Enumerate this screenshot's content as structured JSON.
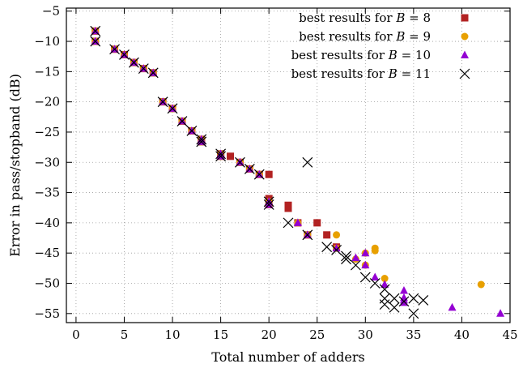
{
  "chart_data": {
    "type": "scatter",
    "xlabel": "Total number of adders",
    "ylabel": "Error in pass/stopband (dB)",
    "xlim": [
      -1,
      45
    ],
    "ylim": [
      -56.5,
      -4.5
    ],
    "xticks": [
      0,
      5,
      10,
      15,
      20,
      25,
      30,
      35,
      40,
      45
    ],
    "yticks": [
      -5,
      -10,
      -15,
      -20,
      -25,
      -30,
      -35,
      -40,
      -45,
      -50,
      -55
    ],
    "grid": true,
    "legend_position": "top-right",
    "series": [
      {
        "name_prefix": "best results for ",
        "name_var": "B",
        "name_value": " = 8",
        "marker": "square",
        "color": "#b22222",
        "points": [
          [
            2,
            -8.3
          ],
          [
            2,
            -10.0
          ],
          [
            4,
            -11.3
          ],
          [
            5,
            -12.2
          ],
          [
            6,
            -13.5
          ],
          [
            7,
            -14.5
          ],
          [
            8,
            -15.2
          ],
          [
            9,
            -20.0
          ],
          [
            10,
            -21.1
          ],
          [
            11,
            -23.2
          ],
          [
            12,
            -24.8
          ],
          [
            13,
            -26.2
          ],
          [
            13,
            -26.6
          ],
          [
            15,
            -28.6
          ],
          [
            15,
            -29.0
          ],
          [
            16,
            -29.0
          ],
          [
            17,
            -30.0
          ],
          [
            18,
            -31.1
          ],
          [
            19,
            -32.0
          ],
          [
            20,
            -32.0
          ],
          [
            20,
            -36.0
          ],
          [
            20,
            -37.0
          ],
          [
            22,
            -37.1
          ],
          [
            22,
            -37.6
          ],
          [
            23,
            -40.0
          ],
          [
            24,
            -42.0
          ],
          [
            25,
            -40.0
          ],
          [
            26,
            -42.0
          ],
          [
            27,
            -44.0
          ]
        ]
      },
      {
        "name_prefix": "best results for ",
        "name_var": "B",
        "name_value": " = 9",
        "marker": "circle",
        "color": "#e8a000",
        "points": [
          [
            2,
            -8.3
          ],
          [
            2,
            -10.0
          ],
          [
            4,
            -11.3
          ],
          [
            5,
            -12.2
          ],
          [
            6,
            -13.5
          ],
          [
            7,
            -14.5
          ],
          [
            8,
            -15.2
          ],
          [
            9,
            -20.0
          ],
          [
            10,
            -21.1
          ],
          [
            11,
            -23.2
          ],
          [
            12,
            -24.8
          ],
          [
            13,
            -26.2
          ],
          [
            13,
            -26.6
          ],
          [
            15,
            -28.6
          ],
          [
            15,
            -29.0
          ],
          [
            17,
            -30.0
          ],
          [
            18,
            -31.1
          ],
          [
            19,
            -32.0
          ],
          [
            20,
            -36.5
          ],
          [
            20,
            -37.0
          ],
          [
            23,
            -40.0
          ],
          [
            24,
            -42.0
          ],
          [
            27,
            -42.0
          ],
          [
            27,
            -44.2
          ],
          [
            29,
            -46.0
          ],
          [
            30,
            -45.0
          ],
          [
            30,
            -47.0
          ],
          [
            31,
            -44.2
          ],
          [
            31,
            -44.6
          ],
          [
            32,
            -49.2
          ],
          [
            42,
            -50.2
          ]
        ]
      },
      {
        "name_prefix": "best results for ",
        "name_var": "B",
        "name_value": " = 10",
        "marker": "triangle",
        "color": "#9400d3",
        "points": [
          [
            2,
            -8.3
          ],
          [
            2,
            -10.0
          ],
          [
            4,
            -11.3
          ],
          [
            5,
            -12.2
          ],
          [
            6,
            -13.5
          ],
          [
            7,
            -14.5
          ],
          [
            8,
            -15.2
          ],
          [
            9,
            -20.0
          ],
          [
            10,
            -21.1
          ],
          [
            11,
            -23.2
          ],
          [
            12,
            -24.8
          ],
          [
            13,
            -26.2
          ],
          [
            13,
            -26.6
          ],
          [
            15,
            -28.6
          ],
          [
            15,
            -29.0
          ],
          [
            17,
            -30.0
          ],
          [
            18,
            -31.1
          ],
          [
            19,
            -32.0
          ],
          [
            20,
            -36.5
          ],
          [
            20,
            -37.0
          ],
          [
            23,
            -40.0
          ],
          [
            24,
            -42.0
          ],
          [
            27,
            -44.2
          ],
          [
            29,
            -45.8
          ],
          [
            30,
            -45.0
          ],
          [
            30,
            -47.0
          ],
          [
            31,
            -49.0
          ],
          [
            32,
            -50.2
          ],
          [
            34,
            -51.2
          ],
          [
            34,
            -52.4
          ],
          [
            34,
            -52.8
          ],
          [
            34,
            -53.2
          ],
          [
            39,
            -54.0
          ],
          [
            44,
            -55.0
          ]
        ]
      },
      {
        "name_prefix": "best results for ",
        "name_var": "B",
        "name_value": " = 11",
        "marker": "cross",
        "color": "#000000",
        "points": [
          [
            2,
            -8.3
          ],
          [
            2,
            -10.0
          ],
          [
            4,
            -11.3
          ],
          [
            5,
            -12.2
          ],
          [
            6,
            -13.5
          ],
          [
            7,
            -14.5
          ],
          [
            8,
            -15.2
          ],
          [
            9,
            -20.0
          ],
          [
            10,
            -21.1
          ],
          [
            11,
            -23.2
          ],
          [
            12,
            -24.8
          ],
          [
            13,
            -26.2
          ],
          [
            13,
            -26.6
          ],
          [
            15,
            -28.6
          ],
          [
            15,
            -29.0
          ],
          [
            17,
            -30.0
          ],
          [
            18,
            -31.1
          ],
          [
            19,
            -32.0
          ],
          [
            20,
            -36.5
          ],
          [
            20,
            -37.0
          ],
          [
            22,
            -40.0
          ],
          [
            24,
            -30.0
          ],
          [
            24,
            -42.0
          ],
          [
            26,
            -44.0
          ],
          [
            27,
            -44.5
          ],
          [
            28,
            -45.5
          ],
          [
            28,
            -46.0
          ],
          [
            29,
            -47.0
          ],
          [
            30,
            -49.0
          ],
          [
            31,
            -50.0
          ],
          [
            32,
            -51.0
          ],
          [
            32,
            -52.5
          ],
          [
            32,
            -53.5
          ],
          [
            33,
            -52.5
          ],
          [
            33,
            -54.0
          ],
          [
            34,
            -53.0
          ],
          [
            35,
            -52.5
          ],
          [
            35,
            -55.0
          ],
          [
            36,
            -52.8
          ]
        ]
      }
    ]
  }
}
